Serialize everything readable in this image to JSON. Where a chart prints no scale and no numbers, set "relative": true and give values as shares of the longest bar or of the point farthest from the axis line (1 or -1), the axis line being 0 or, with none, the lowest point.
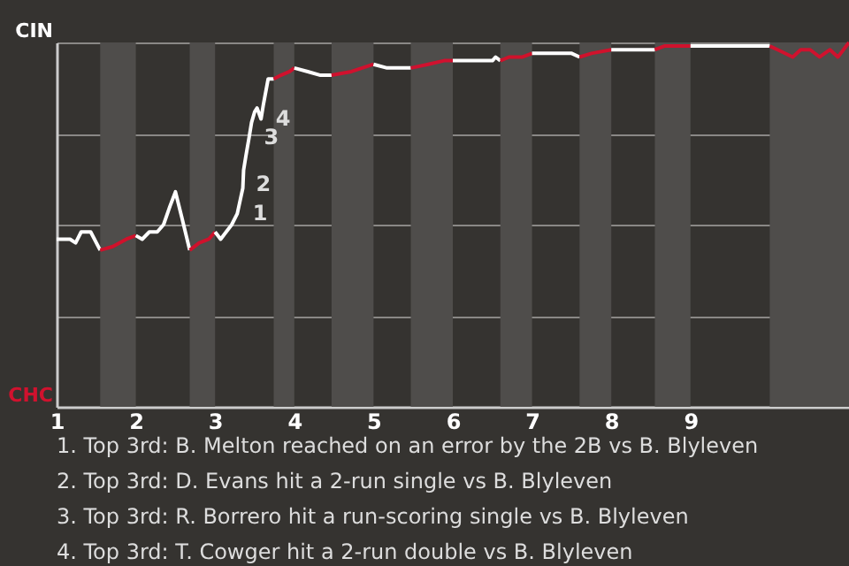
{
  "chart_data": {
    "type": "line",
    "xlim": [
      1,
      11
    ],
    "xticks": [
      1,
      2,
      3,
      4,
      5,
      6,
      7,
      8,
      9
    ],
    "relative": true,
    "grid": "y",
    "marker": "none",
    "line_style": "solid",
    "series": [
      {
        "color": "#ffffff",
        "x": [
          1,
          1.17,
          1.24,
          1.31,
          1.43,
          1.55
        ],
        "values": [
          0.46,
          0.46,
          0.45,
          0.48,
          0.48,
          0.43
        ]
      },
      {
        "color": "#d0112b",
        "x": [
          1.55,
          1.71,
          1.88,
          2
        ],
        "values": [
          0.43,
          0.44,
          0.46,
          0.47
        ]
      },
      {
        "color": "#ffffff",
        "x": [
          2,
          2.08,
          2.17,
          2.27,
          2.35,
          2.43,
          2.5,
          2.58,
          2.68
        ],
        "values": [
          0.47,
          0.46,
          0.48,
          0.48,
          0.5,
          0.55,
          0.59,
          0.52,
          0.43
        ]
      },
      {
        "color": "#d0112c",
        "x": [
          2.68,
          2.8,
          2.92,
          3
        ],
        "values": [
          0.43,
          0.45,
          0.46,
          0.48
        ]
      },
      {
        "color": "#ffffff",
        "x": [
          3,
          3.07,
          3.14,
          3.21,
          3.28,
          3.32,
          3.35,
          3.36,
          3.39,
          3.43,
          3.46,
          3.5,
          3.53,
          3.58,
          3.61,
          3.67,
          3.74
        ],
        "values": [
          0.48,
          0.46,
          0.48,
          0.5,
          0.53,
          0.57,
          0.6,
          0.65,
          0.69,
          0.74,
          0.78,
          0.81,
          0.82,
          0.79,
          0.83,
          0.9,
          0.9
        ]
      },
      {
        "color": "#d0112d",
        "x": [
          3.74,
          3.83,
          3.94,
          4
        ],
        "values": [
          0.9,
          0.91,
          0.92,
          0.93
        ]
      },
      {
        "color": "#ffffff",
        "x": [
          4,
          4.17,
          4.33,
          4.47
        ],
        "values": [
          0.93,
          0.92,
          0.91,
          0.91
        ]
      },
      {
        "color": "#d0112e",
        "x": [
          4.47,
          4.72,
          5
        ],
        "values": [
          0.91,
          0.92,
          0.94
        ]
      },
      {
        "color": "#ffffff",
        "x": [
          5,
          5.17,
          5.31,
          5.47
        ],
        "values": [
          0.94,
          0.93,
          0.93,
          0.93
        ]
      },
      {
        "color": "#d0112f",
        "x": [
          5.47,
          5.69,
          5.89,
          6
        ],
        "values": [
          0.93,
          0.94,
          0.95,
          0.95
        ]
      },
      {
        "color": "#ffffff",
        "x": [
          6,
          6.13,
          6.29,
          6.5,
          6.54,
          6.6
        ],
        "values": [
          0.95,
          0.95,
          0.95,
          0.95,
          0.96,
          0.95
        ]
      },
      {
        "color": "#d0122b",
        "x": [
          6.6,
          6.71,
          6.88,
          7
        ],
        "values": [
          0.95,
          0.96,
          0.96,
          0.97
        ]
      },
      {
        "color": "#ffffff",
        "x": [
          7,
          7.33,
          7.4,
          7.5,
          7.6
        ],
        "values": [
          0.97,
          0.97,
          0.97,
          0.97,
          0.96
        ]
      },
      {
        "color": "#d0122c",
        "x": [
          7.6,
          7.75,
          8
        ],
        "values": [
          0.96,
          0.97,
          0.98
        ]
      },
      {
        "color": "#ffffff",
        "x": [
          8,
          8.55
        ],
        "values": [
          0.98,
          0.98
        ]
      },
      {
        "color": "#d0122d",
        "x": [
          8.55,
          8.67,
          9
        ],
        "values": [
          0.98,
          0.99,
          0.99
        ]
      },
      {
        "color": "#ffffff",
        "x": [
          9,
          10
        ],
        "values": [
          0.99,
          0.99
        ]
      },
      {
        "color": "#d0122e",
        "x": [
          10,
          10.1,
          10.29,
          10.39,
          10.51,
          10.63,
          10.76,
          10.86,
          11
        ],
        "values": [
          0.99,
          0.98,
          0.96,
          0.98,
          0.98,
          0.96,
          0.98,
          0.96,
          1
        ]
      }
    ],
    "bands": [
      {
        "axis": "x",
        "from": 1.55,
        "to": 2,
        "color": "#4f4d4b"
      },
      {
        "axis": "x",
        "from": 2.68,
        "to": 3,
        "color": "#4f4d4b"
      },
      {
        "axis": "x",
        "from": 3.74,
        "to": 4,
        "color": "#4f4d4b"
      },
      {
        "axis": "x",
        "from": 4.47,
        "to": 5,
        "color": "#4f4d4b"
      },
      {
        "axis": "x",
        "from": 5.47,
        "to": 6,
        "color": "#4f4d4b"
      },
      {
        "axis": "x",
        "from": 6.6,
        "to": 7,
        "color": "#4f4d4b"
      },
      {
        "axis": "x",
        "from": 7.6,
        "to": 8,
        "color": "#4f4d4b"
      },
      {
        "axis": "x",
        "from": 8.55,
        "to": 9,
        "color": "#4f4d4b"
      },
      {
        "axis": "x",
        "from": 10,
        "to": 11,
        "color": "#4f4d4b"
      }
    ],
    "annotations": [
      "CIN",
      "CHC",
      {
        "text": "1",
        "x": 3.32,
        "y": 0.57
      },
      {
        "text": "2",
        "x": 3.36,
        "y": 0.65
      },
      {
        "text": "3",
        "x": 3.46,
        "y": 0.78
      },
      {
        "text": "4",
        "x": 3.61,
        "y": 0.83
      },
      "1. Top 3rd: B. Melton reached on an error by the 2B vs B. Blyleven",
      "2. Top 3rd: D. Evans hit a 2-run single vs B. Blyleven",
      "3. Top 3rd: R. Borrero hit a run-scoring single vs B. Blyleven",
      "4. Top 3rd: T. Cowger hit a 2-run double vs B. Blyleven"
    ]
  }
}
